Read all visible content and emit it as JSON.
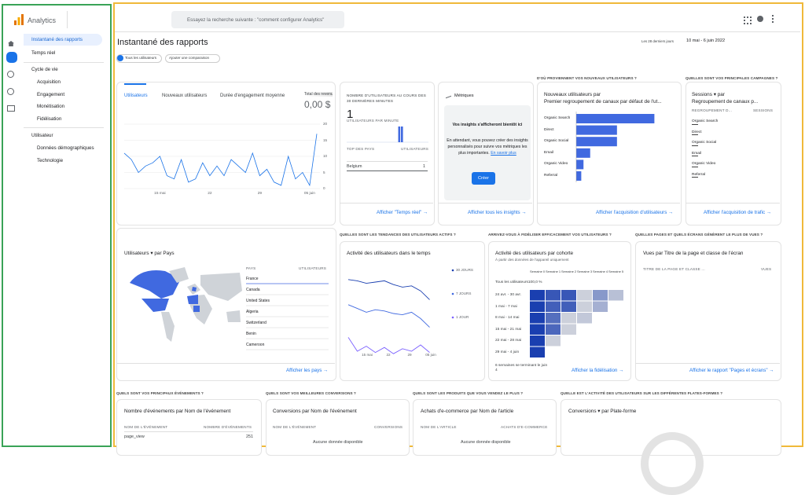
{
  "sidebar": {
    "logo": "Analytics",
    "items": [
      "Instantané des rapports",
      "Temps réel"
    ],
    "lifecycle": {
      "title": "Cycle de vie",
      "items": [
        "Acquisition",
        "Engagement",
        "Monétisation",
        "Fidélisation"
      ]
    },
    "user": {
      "title": "Utilisateur",
      "items": [
        "Données démographiques",
        "Technologie"
      ]
    }
  },
  "header": {
    "search": "Essayez la recherche suivante : \"comment configurer Analytics\""
  },
  "page": {
    "title": "Instantané des rapports",
    "date_prefix": "Les 28 derniers jours",
    "date_range": "10 mai - 6 juin 2022",
    "chips": [
      "Tous les utilisateurs",
      "Ajouter une comparaison"
    ]
  },
  "overview": {
    "tabs": [
      "Utilisateurs",
      "Nouveaux utilisateurs",
      "Durée d'engagement moyenne",
      "Total des revenus"
    ],
    "revenue": "0,00 $",
    "chart": {
      "type": "line",
      "color": "#1a73e8",
      "categories": [
        null,
        null,
        null,
        null,
        null,
        "15 mai",
        null,
        null,
        null,
        null,
        null,
        null,
        "22",
        null,
        null,
        null,
        null,
        null,
        null,
        "29",
        null,
        null,
        null,
        null,
        null,
        null,
        "05 juin",
        null
      ],
      "values": [
        11,
        9,
        5,
        7,
        8,
        10,
        4,
        3,
        9,
        2,
        3,
        8,
        4,
        7,
        4,
        9,
        7,
        5,
        11,
        4,
        6,
        2,
        1,
        10,
        3,
        5,
        1,
        17
      ],
      "ylim": [
        0,
        20
      ],
      "yticks": [
        0,
        5,
        10,
        15,
        20
      ],
      "grid": true
    }
  },
  "realtime": {
    "title": "NOMBRE D'UTILISATEURS AU COURS DES 30 DERNIÈRES MINUTES",
    "value": 1,
    "subtitle": "UTILISATEURS PAR MINUTE",
    "bars": [
      0,
      0,
      0,
      0,
      0,
      0,
      0,
      0,
      0,
      0,
      0,
      0,
      0,
      0,
      0,
      0,
      0,
      0,
      0,
      1,
      1,
      0,
      0,
      0,
      0,
      0,
      0,
      0,
      0,
      0
    ],
    "headers": [
      "TOP DES PAYS",
      "UTILISATEURS"
    ],
    "rows": [
      [
        "Belgium",
        1
      ]
    ],
    "link": "Afficher \"Temps réel\""
  },
  "insights": {
    "title": "Métriques",
    "heading": "Vos insights s'afficheront bientôt ici",
    "text": "En attendant, vous pouvez créer des insights personnalisés pour suivre vos métriques les plus importantes.",
    "more": "En savoir plus",
    "button": "Créer",
    "link": "Afficher tous les insights"
  },
  "acquisition": {
    "section": "D'OÙ PROVIENNENT VOS NOUVEAUX UTILISATEURS ?",
    "title": "Nouveaux utilisateurs par",
    "dimension": "Premier regroupement de canaux par défaut de l'ut...",
    "type": "bar",
    "color": "#4069e0",
    "categories": [
      "Organic Search",
      "Direct",
      "Organic Social",
      "Email",
      "Organic Video",
      "Referral"
    ],
    "values": [
      14,
      7.3,
      7.3,
      2.5,
      1.3,
      0.9
    ],
    "link": "Afficher l'acquisition d'utilisateurs"
  },
  "campaigns": {
    "section": "QUELLES SONT VOS PRINCIPALES CAMPAGNES ?",
    "metric": "Sessions ▾ par",
    "dimension": "Regroupement de canaux p...",
    "headers": [
      "REGROUPEMENT D...",
      "SESSIONS"
    ],
    "rows": [
      "Organic Search",
      "Direct",
      "Organic Social",
      "Email",
      "Organic Video",
      "Referral"
    ],
    "link": "Afficher l'acquisition de trafic"
  },
  "countries": {
    "title": "Utilisateurs ▾ par Pays",
    "headers": [
      "PAYS",
      "UTILISATEURS"
    ],
    "rows": [
      "France",
      "Canada",
      "United States",
      "Algeria",
      "Switzerland",
      "Benin",
      "Cameroon"
    ],
    "link": "Afficher les pays"
  },
  "active": {
    "section": "QUELLES SONT LES TENDANCES DES UTILISATEURS ACTIFS ?",
    "title": "Activité des utilisateurs dans le temps",
    "type": "line",
    "categories": [
      "15 mai",
      "22",
      "29",
      "05 juin"
    ],
    "series": [
      {
        "name": "30 JOURS",
        "color": "#1a3fb0",
        "values": [
          6.2,
          6.1,
          5.9,
          6,
          6.1,
          5.8,
          5.6,
          5.7,
          5.3,
          4.6
        ]
      },
      {
        "name": "7 JOURS",
        "color": "#4069e0",
        "values": [
          4.2,
          3.9,
          3.6,
          3.8,
          3.7,
          3.5,
          3.4,
          3.6,
          3.1,
          2.4
        ]
      },
      {
        "name": "1 JOUR",
        "color": "#7b61ff",
        "values": [
          1.6,
          0.5,
          0.9,
          0.4,
          0.8,
          0.3,
          0.7,
          0.5,
          1,
          0.4
        ]
      }
    ]
  },
  "cohort": {
    "section": "ARRIVEZ-VOUS À FIDÉLISER EFFICACEMENT VOS UTILISATEURS ?",
    "title": "Activité des utilisateurs par cohorte",
    "subtitle": "À partir des données de l'appareil uniquement",
    "columns": [
      "Semaine 0",
      "Semaine 1",
      "Semaine 2",
      "Semaine 3",
      "Semaine 4",
      "Semaine 5"
    ],
    "all": "Tous les utilisateurs100,0 %",
    "rows": [
      "24 avr. - 30 avr.",
      "1 mai - 7 mai",
      "8 mai - 14 mai",
      "15 mai - 21 mai",
      "22 mai - 28 mai",
      "29 mai - 4 juin"
    ],
    "values": [
      [
        100,
        85,
        85,
        10,
        45,
        20
      ],
      [
        100,
        80,
        80,
        10,
        30,
        null
      ],
      [
        100,
        70,
        10,
        15,
        null,
        null
      ],
      [
        100,
        75,
        10,
        null,
        null,
        null
      ],
      [
        100,
        10,
        null,
        null,
        null,
        null
      ],
      [
        100,
        null,
        null,
        null,
        null,
        null
      ]
    ],
    "footer": "6 semaines se terminant le juin 4",
    "link": "Afficher la fidélisation"
  },
  "pages": {
    "section": "QUELLES PAGES ET QUELS ÉCRANS GÉNÈRENT LE PLUS DE VUES ?",
    "title": "Vues par Titre de la page et classe de l'écran",
    "headers": [
      "TITRE DE LA PAGE ET CLASSE ...",
      "VUES"
    ],
    "link": "Afficher le rapport \"Pages et écrans\""
  },
  "events": {
    "section": "QUELS SONT VOS PRINCIPAUX ÉVÉNEMENTS ?",
    "title": "Nombre d'événements par Nom de l'événement",
    "headers": [
      "NOM DE L'ÉVÉNEMENT",
      "NOMBRE D'ÉVÉNEMENTS"
    ],
    "rows": [
      [
        "page_view",
        251
      ]
    ]
  },
  "conversions": {
    "section": "QUELS SONT VOS MEILLEURES CONVERSIONS ?",
    "title": "Conversions par Nom de l'événement",
    "headers": [
      "NOM DE L'ÉVÉNEMENT",
      "CONVERSIONS"
    ],
    "empty": "Aucune donnée disponible"
  },
  "products": {
    "section": "QUELS SONT LES PRODUITS QUE VOUS VENDEZ LE PLUS ?",
    "title": "Achats d'e-commerce par Nom de l'article",
    "headers": [
      "NOM DE L'ARTICLE",
      "ACHATS D'E-COMMERCE"
    ],
    "empty": "Aucune donnée disponible"
  },
  "platforms": {
    "section": "QUELLE EST L'ACTIVITÉ DES UTILISATEURS SUR LES DIFFÉRENTES PLATES-FORMES ?",
    "title": "Conversions ▾ par Plate-forme"
  }
}
